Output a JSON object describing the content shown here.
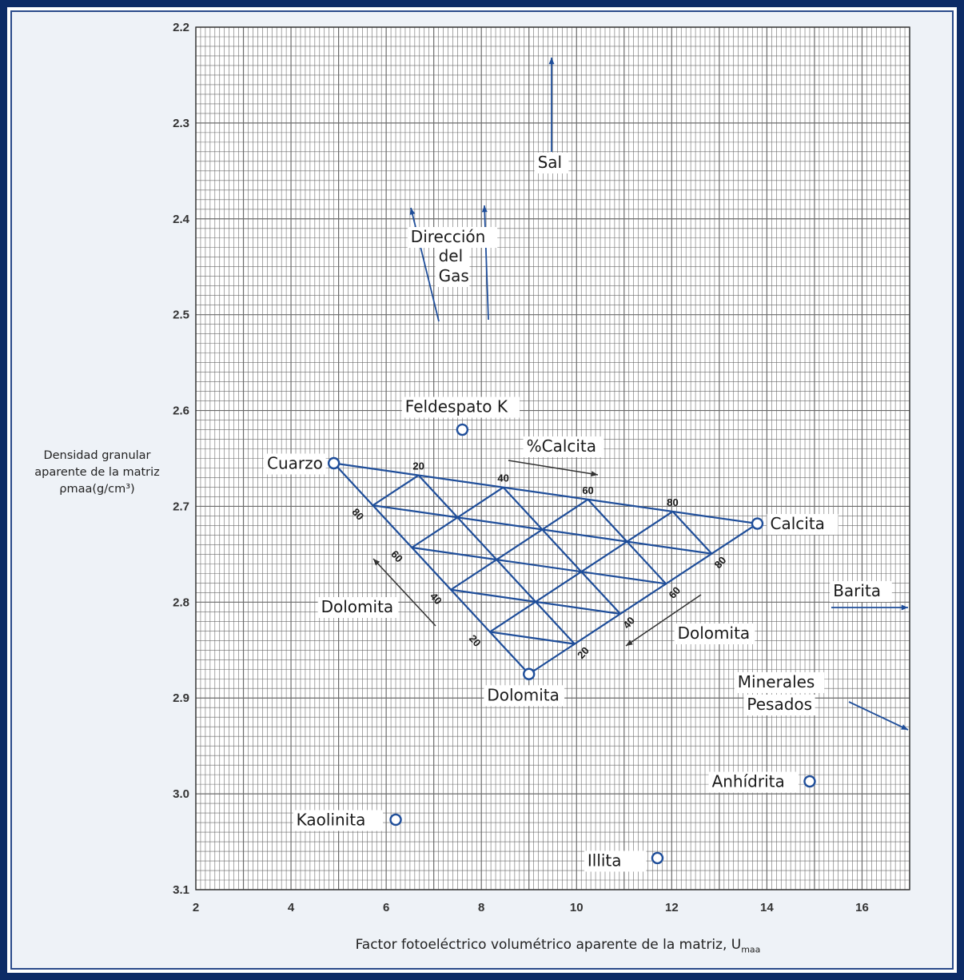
{
  "chart_data": {
    "type": "scatter",
    "xlabel": "Factor fotoeléctrico volumétrico  aparente de la matriz, U",
    "xlabel_sub": "maa",
    "ylabel_lines": [
      "Densidad granular",
      "aparente de la matriz",
      "ρmaa(g/cm³)"
    ],
    "xlim": [
      2,
      17
    ],
    "ylim": [
      2.2,
      3.1
    ],
    "y_inverted": true,
    "grid": true,
    "x_ticks": [
      "2",
      "4",
      "6",
      "8",
      "10",
      "12",
      "14",
      "16"
    ],
    "y_ticks": [
      "2.2",
      "2.3",
      "2.4",
      "2.5",
      "2.6",
      "2.7",
      "2.8",
      "2.9",
      "3.0",
      "3.1"
    ],
    "points": [
      {
        "label": "Cuarzo",
        "x": 4.9,
        "y": 2.655
      },
      {
        "label": "Calcita",
        "x": 13.8,
        "y": 2.718
      },
      {
        "label": "Dolomita",
        "x": 9.0,
        "y": 2.875
      },
      {
        "label": "Feldespato K",
        "x": 7.6,
        "y": 2.62
      },
      {
        "label": "Kaolinita",
        "x": 6.2,
        "y": 3.027
      },
      {
        "label": "Anhídrita",
        "x": 14.9,
        "y": 2.987
      },
      {
        "label": "Illita",
        "x": 11.7,
        "y": 3.067
      }
    ],
    "ternary_scale_labels": [
      "20",
      "40",
      "60",
      "80"
    ],
    "annotations": {
      "sal": "Sal",
      "gas": [
        "Dirección",
        "del",
        "Gas"
      ],
      "calcita_pct": "%Calcita",
      "dolomita_left": "Dolomita",
      "dolomita_right": "Dolomita",
      "barita": "Barita",
      "minerales": [
        "Minerales",
        "Pesados"
      ]
    },
    "colors": {
      "grid": "#5a5a5a",
      "series": "#1f4e9a",
      "frame": "#0d2b66",
      "background": "#eef2f7"
    }
  }
}
